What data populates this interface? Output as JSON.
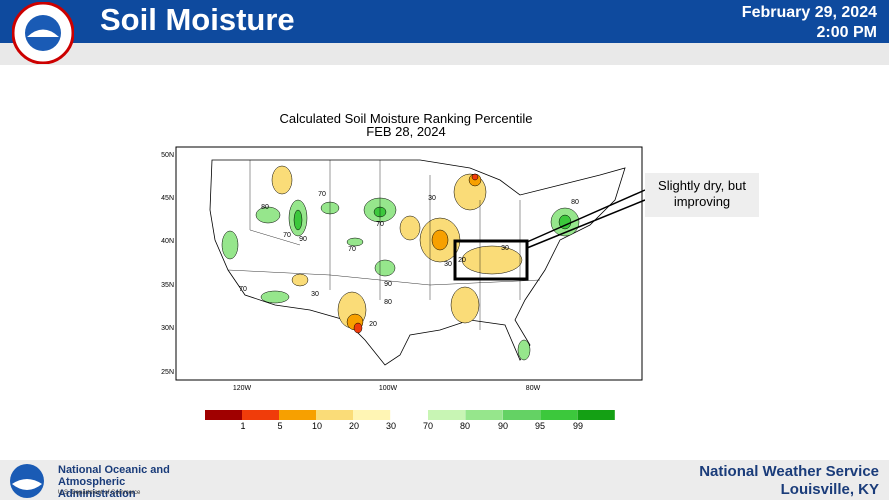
{
  "header": {
    "title": "Soil Moisture",
    "date": "February 29, 2024",
    "time": "2:00 PM"
  },
  "map": {
    "title": "Calculated Soil Moisture Ranking Percentile",
    "subtitle": "FEB 28, 2024",
    "lat_labels": [
      "50N",
      "45N",
      "40N",
      "35N",
      "30N",
      "25N"
    ],
    "lon_labels": [
      "120W",
      "100W",
      "80W"
    ],
    "contour_labels": [
      70,
      80,
      70,
      90,
      70,
      90,
      80,
      70,
      30,
      30,
      20,
      70,
      30,
      20,
      80,
      30
    ],
    "legend": {
      "colors": [
        "#a00000",
        "#f03c0a",
        "#f7a000",
        "#fadc78",
        "#fff5b4",
        "#c8f5b4",
        "#96e68c",
        "#64d264",
        "#3cc83c",
        "#14a014"
      ],
      "ticks": [
        1,
        5,
        10,
        20,
        30,
        70,
        80,
        90,
        95,
        99
      ]
    }
  },
  "callout": "Slightly dry, but improving",
  "footer": {
    "agency": "National Oceanic and Atmospheric Administration",
    "department": "U.S. Department of Commerce",
    "office": "National Weather Service",
    "location": "Louisville, KY"
  }
}
